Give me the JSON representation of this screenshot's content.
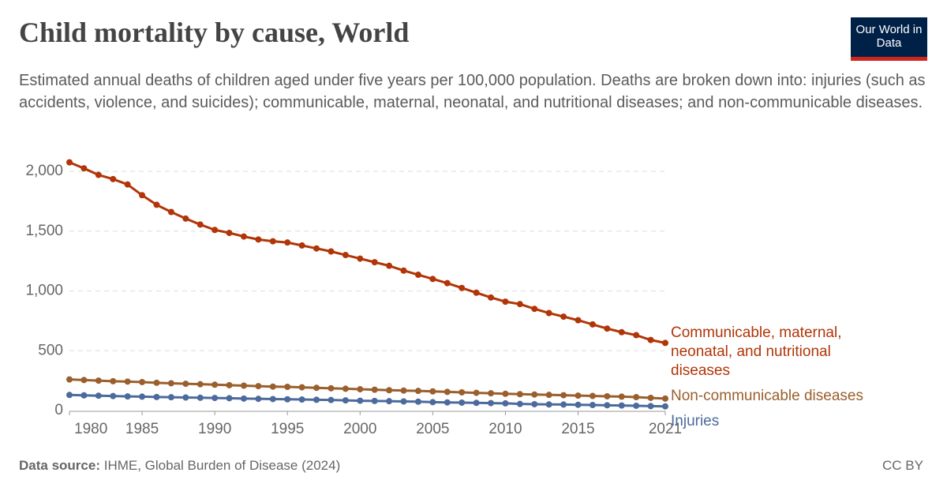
{
  "chart_data": {
    "type": "line",
    "title": "Child mortality by cause, World",
    "subtitle": "Estimated annual deaths of children aged under five years per 100,000 population. Deaths are broken down into: injuries (such as accidents, violence, and suicides); communicable, maternal, neonatal, and nutritional diseases; and non-communicable diseases.",
    "x": [
      1980,
      1981,
      1982,
      1983,
      1984,
      1985,
      1986,
      1987,
      1988,
      1989,
      1990,
      1991,
      1992,
      1993,
      1994,
      1995,
      1996,
      1997,
      1998,
      1999,
      2000,
      2001,
      2002,
      2003,
      2004,
      2005,
      2006,
      2007,
      2008,
      2009,
      2010,
      2011,
      2012,
      2013,
      2014,
      2015,
      2016,
      2017,
      2018,
      2019,
      2020,
      2021
    ],
    "xlim": [
      1980,
      2021
    ],
    "xticks": [
      1980,
      1985,
      1990,
      1995,
      2000,
      2005,
      2010,
      2015,
      2021
    ],
    "ylim": [
      0,
      2000
    ],
    "yticks": [
      0,
      500,
      {
        "value": 1000,
        "label": "1,000"
      },
      {
        "value": 1500,
        "label": "1,500"
      },
      {
        "value": 2000,
        "label": "2,000"
      }
    ],
    "grid": true,
    "series": [
      {
        "name": "Communicable, maternal, neonatal, and nutritional diseases",
        "color": "#b13507",
        "values": [
          2075,
          2025,
          1970,
          1935,
          1890,
          1800,
          1720,
          1660,
          1605,
          1555,
          1510,
          1485,
          1455,
          1430,
          1415,
          1405,
          1380,
          1355,
          1330,
          1300,
          1270,
          1240,
          1210,
          1170,
          1135,
          1100,
          1065,
          1025,
          985,
          945,
          910,
          890,
          850,
          815,
          785,
          755,
          720,
          685,
          655,
          630,
          590,
          565
        ]
      },
      {
        "name": "Non-communicable diseases",
        "color": "#9a5f2c",
        "values": [
          260,
          255,
          250,
          245,
          242,
          238,
          232,
          228,
          224,
          220,
          216,
          212,
          208,
          204,
          200,
          198,
          194,
          190,
          186,
          182,
          178,
          174,
          170,
          167,
          164,
          160,
          156,
          152,
          148,
          144,
          140,
          137,
          134,
          131,
          128,
          125,
          122,
          119,
          116,
          112,
          106,
          100
        ]
      },
      {
        "name": "Injuries",
        "color": "#4c6a9c",
        "values": [
          130,
          127,
          124,
          121,
          118,
          116,
          113,
          111,
          109,
          107,
          105,
          103,
          100,
          98,
          96,
          94,
          92,
          90,
          88,
          85,
          82,
          80,
          78,
          76,
          74,
          70,
          68,
          66,
          64,
          62,
          60,
          55,
          53,
          51,
          50,
          48,
          46,
          44,
          42,
          40,
          37,
          35
        ]
      }
    ]
  },
  "logo": "Our World in Data",
  "source_label": "Data source:",
  "source": "IHME, Global Burden of Disease (2024)",
  "license": "CC BY"
}
